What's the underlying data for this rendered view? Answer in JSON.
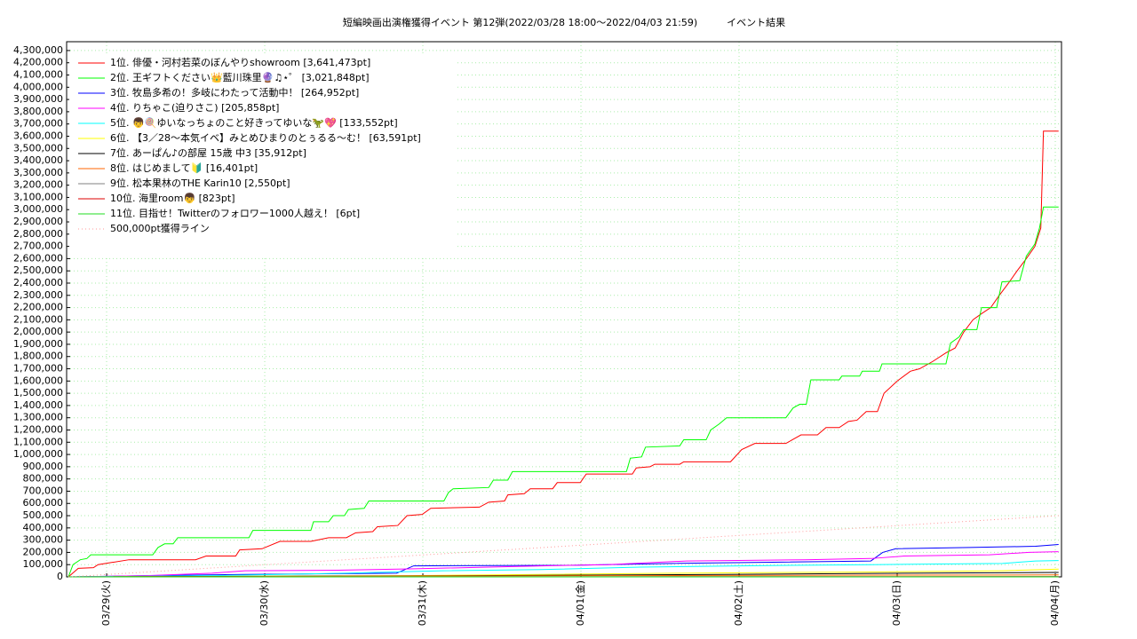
{
  "chart_data": {
    "type": "line",
    "title": "短編映画出演権獲得イベント 第12弾(2022/03/28 18:00～2022/04/03 21:59)　　　イベント結果",
    "xlim": [
      17.93,
      168.94
    ],
    "xticks": [
      {
        "value": 24,
        "label": "03/29(火)"
      },
      {
        "value": 48,
        "label": "03/30(水)"
      },
      {
        "value": 72,
        "label": "03/31(木)"
      },
      {
        "value": 96,
        "label": "04/01(金)"
      },
      {
        "value": 120,
        "label": "04/02(土)"
      },
      {
        "value": 144,
        "label": "04/03(日)"
      },
      {
        "value": 168,
        "label": "04/04(月)"
      }
    ],
    "ylim": [
      0,
      4372000
    ],
    "yticks": [
      0,
      {
        "value": 100000,
        "label": "100,000"
      },
      {
        "value": 200000,
        "label": "200,000"
      },
      {
        "value": 300000,
        "label": "300,000"
      },
      {
        "value": 400000,
        "label": "400,000"
      },
      {
        "value": 500000,
        "label": "500,000"
      },
      {
        "value": 600000,
        "label": "600,000"
      },
      {
        "value": 700000,
        "label": "700,000"
      },
      {
        "value": 800000,
        "label": "800,000"
      },
      {
        "value": 900000,
        "label": "900,000"
      },
      {
        "value": 1000000,
        "label": "1,000,000"
      },
      {
        "value": 1100000,
        "label": "1,100,000"
      },
      {
        "value": 1200000,
        "label": "1,200,000"
      },
      {
        "value": 1300000,
        "label": "1,300,000"
      },
      {
        "value": 1400000,
        "label": "1,400,000"
      },
      {
        "value": 1500000,
        "label": "1,500,000"
      },
      {
        "value": 1600000,
        "label": "1,600,000"
      },
      {
        "value": 1700000,
        "label": "1,700,000"
      },
      {
        "value": 1800000,
        "label": "1,800,000"
      },
      {
        "value": 1900000,
        "label": "1,900,000"
      },
      {
        "value": 2000000,
        "label": "2,000,000"
      },
      {
        "value": 2100000,
        "label": "2,100,000"
      },
      {
        "value": 2200000,
        "label": "2,200,000"
      },
      {
        "value": 2300000,
        "label": "2,300,000"
      },
      {
        "value": 2400000,
        "label": "2,400,000"
      },
      {
        "value": 2500000,
        "label": "2,500,000"
      },
      {
        "value": 2600000,
        "label": "2,600,000"
      },
      {
        "value": 2700000,
        "label": "2,700,000"
      },
      {
        "value": 2800000,
        "label": "2,800,000"
      },
      {
        "value": 2900000,
        "label": "2,900,000"
      },
      {
        "value": 3000000,
        "label": "3,000,000"
      },
      {
        "value": 3100000,
        "label": "3,100,000"
      },
      {
        "value": 3200000,
        "label": "3,200,000"
      },
      {
        "value": 3300000,
        "label": "3,300,000"
      },
      {
        "value": 3400000,
        "label": "3,400,000"
      },
      {
        "value": 3500000,
        "label": "3,500,000"
      },
      {
        "value": 3600000,
        "label": "3,600,000"
      },
      {
        "value": 3700000,
        "label": "3,700,000"
      },
      {
        "value": 3800000,
        "label": "3,800,000"
      },
      {
        "value": 3900000,
        "label": "3,900,000"
      },
      {
        "value": 4000000,
        "label": "4,000,000"
      },
      {
        "value": 4100000,
        "label": "4,100,000"
      },
      {
        "value": 4200000,
        "label": "4,200,000"
      },
      {
        "value": 4300000,
        "label": "4,300,000"
      }
    ],
    "grid": true,
    "legend": "top-left",
    "series": [
      {
        "name": "1位. 俳優・河村若菜のぼんやりshowroom [3,641,473pt]",
        "color": "#ff0000",
        "x": [
          18.2,
          19.7,
          22.0,
          22.7,
          27.4,
          37.5,
          39.1,
          43.6,
          44.2,
          47.6,
          50.3,
          55.0,
          57.7,
          60.4,
          61.8,
          64.4,
          65.1,
          68.2,
          69.6,
          71.9,
          73.2,
          80.6,
          82.0,
          84.4,
          84.9,
          87.4,
          88.3,
          91.7,
          92.4,
          95.9,
          96.8,
          103.8,
          104.4,
          106.5,
          107.2,
          111.0,
          111.6,
          118.7,
          120.4,
          122.4,
          127.1,
          129.4,
          131.9,
          133.2,
          135.2,
          136.6,
          137.9,
          139.3,
          141.0,
          142.0,
          144.0,
          146.0,
          147.4,
          149.4,
          151.4,
          152.8,
          154.1,
          155.5,
          156.8,
          158.2,
          159.5,
          160.9,
          162.2,
          163.6,
          164.9,
          165.8,
          166.2,
          168.5
        ],
        "values": [
          0,
          70000,
          75000,
          100000,
          140000,
          140000,
          170000,
          170000,
          220000,
          230000,
          290000,
          290000,
          320000,
          320000,
          360000,
          370000,
          410000,
          420000,
          500000,
          510000,
          560000,
          570000,
          610000,
          620000,
          670000,
          680000,
          720000,
          720000,
          770000,
          770000,
          840000,
          840000,
          890000,
          900000,
          920000,
          920000,
          940000,
          940000,
          1040000,
          1090000,
          1090000,
          1160000,
          1160000,
          1220000,
          1220000,
          1270000,
          1280000,
          1350000,
          1350000,
          1500000,
          1600000,
          1680000,
          1700000,
          1760000,
          1830000,
          1870000,
          2000000,
          2100000,
          2150000,
          2200000,
          2300000,
          2400000,
          2500000,
          2600000,
          2700000,
          2850000,
          3641473,
          3641473
        ]
      },
      {
        "name": "2位. 王ギフトください👑藍川珠里🔮♫⋆゜ [3,021,848pt]",
        "color": "#00ff00",
        "x": [
          18.2,
          18.9,
          20.0,
          21.0,
          21.6,
          31.0,
          31.8,
          32.8,
          34.1,
          34.8,
          45.6,
          46.2,
          55.0,
          55.4,
          57.7,
          58.4,
          60.1,
          60.7,
          63.1,
          63.8,
          75.2,
          75.9,
          76.6,
          82.0,
          82.7,
          84.9,
          85.6,
          102.9,
          103.5,
          105.2,
          105.8,
          111.0,
          111.6,
          115.0,
          115.7,
          117.0,
          118.1,
          127.1,
          128.2,
          129.2,
          130.2,
          130.9,
          135.2,
          135.6,
          138.3,
          138.7,
          141.3,
          141.7,
          151.4,
          152.1,
          153.4,
          154.1,
          156.1,
          156.8,
          159.1,
          159.9,
          162.6,
          163.6,
          164.9,
          165.6,
          166.2,
          168.5
        ],
        "values": [
          0,
          100000,
          140000,
          150000,
          180000,
          180000,
          240000,
          270000,
          270000,
          320000,
          320000,
          380000,
          380000,
          450000,
          450000,
          500000,
          500000,
          550000,
          560000,
          620000,
          620000,
          690000,
          720000,
          730000,
          790000,
          790000,
          860000,
          860000,
          970000,
          980000,
          1060000,
          1070000,
          1120000,
          1120000,
          1200000,
          1250000,
          1300000,
          1300000,
          1380000,
          1410000,
          1410000,
          1610000,
          1610000,
          1640000,
          1640000,
          1680000,
          1680000,
          1740000,
          1740000,
          1910000,
          1960000,
          2020000,
          2020000,
          2200000,
          2200000,
          2410000,
          2420000,
          2620000,
          2720000,
          2850000,
          3021848,
          3021848
        ]
      },
      {
        "name": "3位. 牧島多希の！多岐にわたって活動中！ [264,952pt]",
        "color": "#0000ff",
        "x": [
          18.2,
          30,
          45,
          68,
          70.6,
          95,
          110,
          125,
          140,
          141.8,
          143.8,
          155,
          165,
          168.5
        ],
        "values": [
          0,
          10000,
          20000,
          30000,
          90000,
          95000,
          110000,
          120000,
          130000,
          200000,
          230000,
          240000,
          250000,
          264952
        ]
      },
      {
        "name": "4位. りちゃこ(迫りさこ) [205,858pt]",
        "color": "#ff00ff",
        "x": [
          18.2,
          30,
          40,
          45,
          60,
          70,
          90,
          100,
          112,
          130,
          140,
          145,
          158,
          164,
          168.5
        ],
        "values": [
          0,
          10000,
          30000,
          50000,
          55000,
          65000,
          90000,
          100000,
          130000,
          140000,
          150000,
          170000,
          180000,
          200000,
          205858
        ]
      },
      {
        "name": "5位. 👦🍭ゆいなっちょのこと好きってゆいな🦖💖 [133,552pt]",
        "color": "#00ffff",
        "x": [
          18.2,
          40,
          60,
          75,
          90,
          105,
          120,
          140,
          160,
          165,
          168.5
        ],
        "values": [
          0,
          10000,
          30000,
          50000,
          60000,
          80000,
          90000,
          100000,
          110000,
          130000,
          133552
        ]
      },
      {
        "name": "6位. 【3／28〜本気イベ】みとめひまりのとぅるる〜む！ [63,591pt]",
        "color": "#ffff00",
        "x": [
          18.2,
          70,
          90,
          110,
          140,
          160,
          168.5
        ],
        "values": [
          0,
          10000,
          20000,
          30000,
          40000,
          50000,
          63591
        ]
      },
      {
        "name": "7位. あーぱん♪の部屋 15歳 中3 [35,912pt]",
        "color": "#000000",
        "x": [
          18.2,
          80,
          118,
          145,
          168.5
        ],
        "values": [
          0,
          10000,
          20000,
          30000,
          35912
        ]
      },
      {
        "name": "8位. はじめまして🔰 [16,401pt]",
        "color": "#ff6600",
        "x": [
          18.2,
          60,
          100,
          168.5
        ],
        "values": [
          0,
          5000,
          10000,
          16401
        ]
      },
      {
        "name": "9位. 松本果林のTHE Karin10 [2,550pt]",
        "color": "#808080",
        "x": [
          18.2,
          168.5
        ],
        "values": [
          0,
          2550
        ]
      },
      {
        "name": "10位. 海里room👦 [823pt]",
        "color": "#dd0000",
        "x": [
          18.2,
          168.5
        ],
        "values": [
          0,
          823
        ]
      },
      {
        "name": "11位. 目指せ！Twitterのフォロワー1000人越え！ [6pt]",
        "color": "#22dd22",
        "x": [
          18.2,
          168.5
        ],
        "values": [
          0,
          6
        ]
      },
      {
        "name": "500,000pt獲得ライン",
        "color": "#ff9999",
        "style": "dotted",
        "x": [
          18.2,
          168.5
        ],
        "values": [
          0,
          500000
        ]
      }
    ]
  }
}
